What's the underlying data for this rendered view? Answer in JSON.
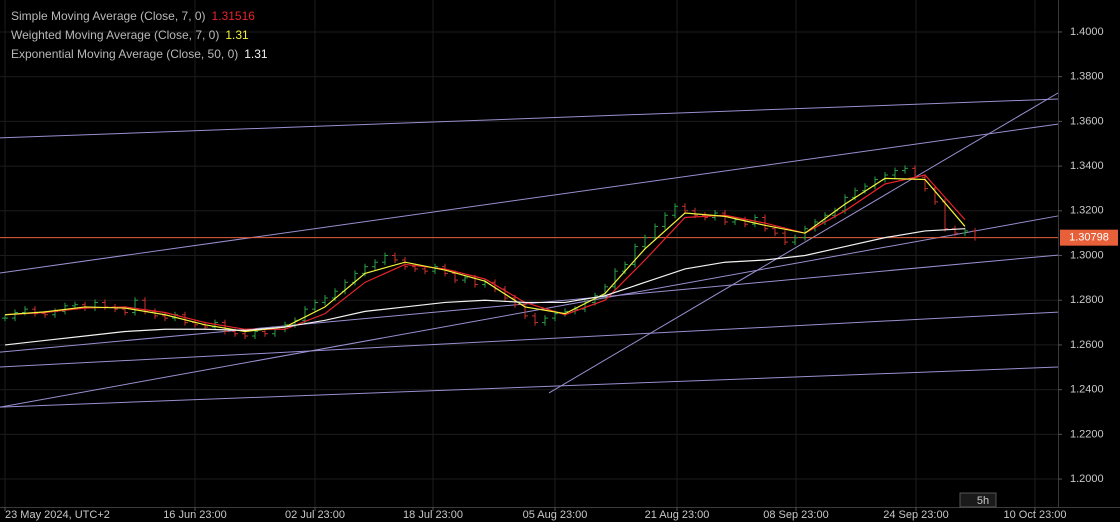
{
  "chart_data": {
    "type": "price",
    "price": {
      "close": [
        1.272,
        1.2745,
        1.276,
        1.274,
        1.2735,
        1.275,
        1.2775,
        1.278,
        1.2765,
        1.279,
        1.277,
        1.276,
        1.2745,
        1.28,
        1.275,
        1.273,
        1.272,
        1.2735,
        1.27,
        1.269,
        1.268,
        1.27,
        1.266,
        1.265,
        1.264,
        1.266,
        1.265,
        1.267,
        1.269,
        1.271,
        1.276,
        1.279,
        1.281,
        1.284,
        1.288,
        1.292,
        1.295,
        1.297,
        1.3,
        1.298,
        1.295,
        1.294,
        1.293,
        1.295,
        1.292,
        1.289,
        1.29,
        1.287,
        1.288,
        1.285,
        1.281,
        1.278,
        1.273,
        1.27,
        1.272,
        1.274,
        1.275,
        1.276,
        1.279,
        1.282,
        1.286,
        1.293,
        1.296,
        1.304,
        1.308,
        1.313,
        1.318,
        1.322,
        1.32,
        1.318,
        1.317,
        1.319,
        1.315,
        1.316,
        1.314,
        1.317,
        1.312,
        1.31,
        1.306,
        1.308,
        1.312,
        1.315,
        1.318,
        1.32,
        1.326,
        1.329,
        1.331,
        1.334,
        1.336,
        1.338,
        1.339,
        1.335,
        1.33,
        1.324,
        1.312,
        1.31,
        1.311,
        1.308
      ],
      "up_color": "#2e9e4a",
      "down_color": "#c8322b"
    },
    "x": [
      0,
      4,
      8,
      12,
      16,
      20,
      24,
      28,
      32,
      36,
      40,
      44,
      48,
      52,
      56,
      60,
      64,
      68,
      72,
      76,
      80,
      84,
      88,
      92,
      96
    ],
    "series": [
      {
        "name": "Simple Moving Average (Close, 7, 0)",
        "color": "#e8242b",
        "last_value": 1.31516,
        "values": [
          1.2735,
          1.2745,
          1.2765,
          1.277,
          1.2745,
          1.27,
          1.267,
          1.267,
          1.274,
          1.288,
          1.296,
          1.294,
          1.2895,
          1.279,
          1.2735,
          1.28,
          1.298,
          1.317,
          1.318,
          1.3145,
          1.31,
          1.32,
          1.332,
          1.336,
          1.316
        ]
      },
      {
        "name": "Weighted Moving Average (Close, 7, 0)",
        "color": "#f2f23a",
        "last_value": 1.31,
        "values": [
          1.2735,
          1.2748,
          1.277,
          1.2765,
          1.2735,
          1.269,
          1.266,
          1.268,
          1.277,
          1.292,
          1.297,
          1.2935,
          1.2885,
          1.277,
          1.274,
          1.283,
          1.303,
          1.319,
          1.3175,
          1.3135,
          1.31,
          1.323,
          1.3345,
          1.334,
          1.313
        ]
      },
      {
        "name": "Exponential Moving Average (Close, 50, 0)",
        "color": "#f2f2f2",
        "last_value": 1.31,
        "values": [
          1.26,
          1.262,
          1.264,
          1.266,
          1.267,
          1.267,
          1.2665,
          1.268,
          1.271,
          1.275,
          1.277,
          1.279,
          1.28,
          1.279,
          1.279,
          1.282,
          1.288,
          1.294,
          1.297,
          1.298,
          1.3,
          1.304,
          1.308,
          1.311,
          1.312
        ]
      }
    ],
    "trendlines": [
      {
        "x": [
          -0.5,
          105.3
        ],
        "y": [
          1.3526,
          1.37
        ]
      },
      {
        "x": [
          -0.5,
          105.3
        ],
        "y": [
          1.2922,
          1.3588
        ]
      },
      {
        "x": [
          -0.5,
          105.3
        ],
        "y": [
          1.2322,
          1.3177
        ]
      },
      {
        "x": [
          54.4,
          105.3
        ],
        "y": [
          1.2385,
          1.3727
        ]
      },
      {
        "x": [
          -0.5,
          105.3
        ],
        "y": [
          1.2568,
          1.3002
        ]
      },
      {
        "x": [
          -0.5,
          105.3
        ],
        "y": [
          1.2501,
          1.2747
        ]
      },
      {
        "x": [
          -0.5,
          105.3
        ],
        "y": [
          1.2322,
          1.2501
        ]
      }
    ],
    "trendline_color": "#9a8fd0",
    "last_price": 1.30798,
    "last_price_color": "#e8603a",
    "timeframe": "5h",
    "xlim": [
      -0.5,
      105.3
    ],
    "ylim": [
      1.1875,
      1.4143
    ],
    "xticks": [
      {
        "value": 0,
        "label": "23 May 2024, UTC+2"
      },
      {
        "value": 19,
        "label": "16 Jun 23:00"
      },
      {
        "value": 31,
        "label": "02 Jul 23:00"
      },
      {
        "value": 42.8,
        "label": "18 Jul 23:00"
      },
      {
        "value": 55,
        "label": "05 Aug 23:00"
      },
      {
        "value": 67.2,
        "label": "21 Aug 23:00"
      },
      {
        "value": 79.1,
        "label": "08 Sep 23:00"
      },
      {
        "value": 91.1,
        "label": "24 Sep 23:00"
      },
      {
        "value": 103,
        "label": "10 Oct 23:00"
      }
    ],
    "yticks": [
      {
        "value": 1.2,
        "label": "1.2000"
      },
      {
        "value": 1.22,
        "label": "1.2200"
      },
      {
        "value": 1.24,
        "label": "1.2400"
      },
      {
        "value": 1.26,
        "label": "1.2600"
      },
      {
        "value": 1.28,
        "label": "1.2800"
      },
      {
        "value": 1.3,
        "label": "1.3000"
      },
      {
        "value": 1.32,
        "label": "1.3200"
      },
      {
        "value": 1.34,
        "label": "1.3400"
      },
      {
        "value": 1.36,
        "label": "1.3600"
      },
      {
        "value": 1.38,
        "label": "1.3800"
      },
      {
        "value": 1.4,
        "label": "1.4000"
      }
    ],
    "grid": true
  }
}
